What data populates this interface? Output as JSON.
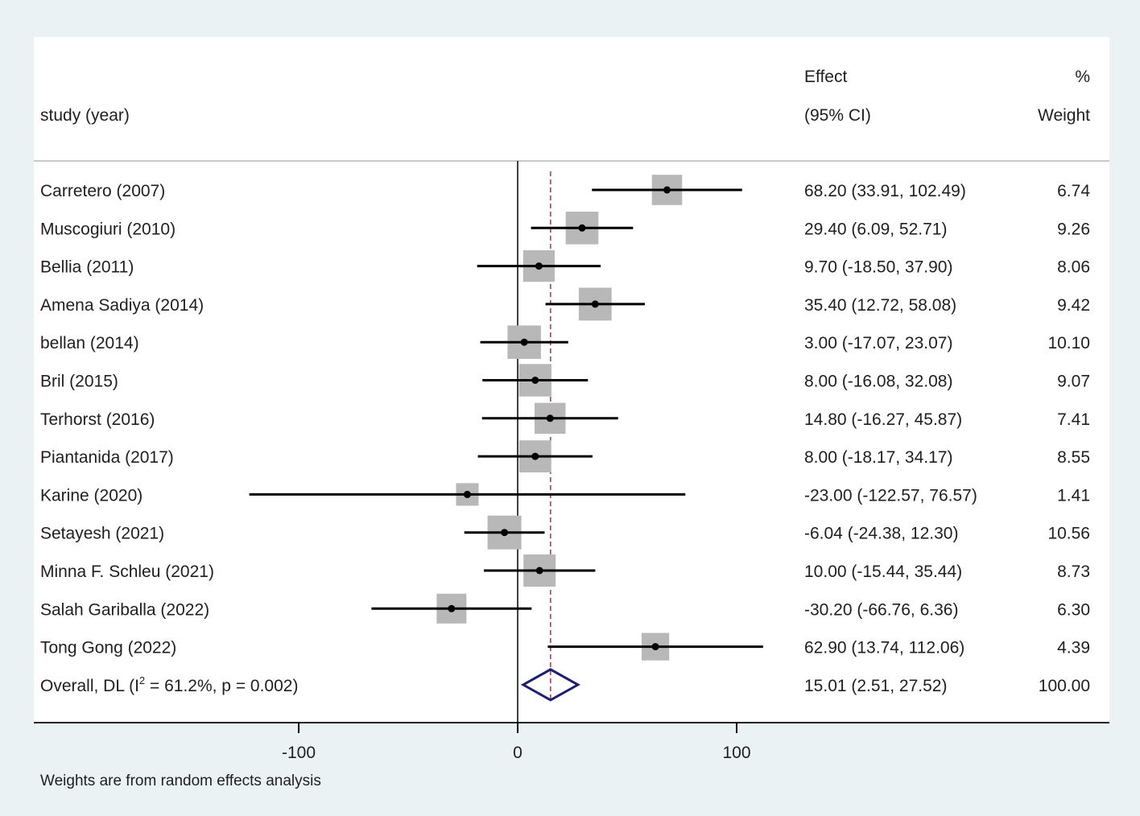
{
  "chart_data": {
    "type": "forest",
    "header": {
      "study": "study (year)",
      "effect_line1": "Effect",
      "effect_line2": "(95% CI)",
      "weight_line1": "%",
      "weight_line2": "Weight"
    },
    "studies": [
      {
        "label": "Carretero (2007)",
        "effect": 68.2,
        "lower": 33.91,
        "upper": 102.49,
        "ci_text": "68.20 (33.91, 102.49)",
        "weight": 6.74,
        "weight_text": "6.74"
      },
      {
        "label": "Muscogiuri (2010)",
        "effect": 29.4,
        "lower": 6.09,
        "upper": 52.71,
        "ci_text": "29.40 (6.09, 52.71)",
        "weight": 9.26,
        "weight_text": "9.26"
      },
      {
        "label": "Bellia (2011)",
        "effect": 9.7,
        "lower": -18.5,
        "upper": 37.9,
        "ci_text": "9.70 (-18.50, 37.90)",
        "weight": 8.06,
        "weight_text": "8.06"
      },
      {
        "label": "Amena Sadiya (2014)",
        "effect": 35.4,
        "lower": 12.72,
        "upper": 58.08,
        "ci_text": "35.40 (12.72, 58.08)",
        "weight": 9.42,
        "weight_text": "9.42"
      },
      {
        "label": "bellan (2014)",
        "effect": 3.0,
        "lower": -17.07,
        "upper": 23.07,
        "ci_text": "3.00 (-17.07, 23.07)",
        "weight": 10.1,
        "weight_text": "10.10"
      },
      {
        "label": "Bril (2015)",
        "effect": 8.0,
        "lower": -16.08,
        "upper": 32.08,
        "ci_text": "8.00 (-16.08, 32.08)",
        "weight": 9.07,
        "weight_text": "9.07"
      },
      {
        "label": "Terhorst (2016)",
        "effect": 14.8,
        "lower": -16.27,
        "upper": 45.87,
        "ci_text": "14.80 (-16.27, 45.87)",
        "weight": 7.41,
        "weight_text": "7.41"
      },
      {
        "label": "Piantanida (2017)",
        "effect": 8.0,
        "lower": -18.17,
        "upper": 34.17,
        "ci_text": "8.00 (-18.17, 34.17)",
        "weight": 8.55,
        "weight_text": "8.55"
      },
      {
        "label": "Karine (2020)",
        "effect": -23.0,
        "lower": -122.57,
        "upper": 76.57,
        "ci_text": "-23.00 (-122.57, 76.57)",
        "weight": 1.41,
        "weight_text": "1.41"
      },
      {
        "label": "Setayesh (2021)",
        "effect": -6.04,
        "lower": -24.38,
        "upper": 12.3,
        "ci_text": "-6.04 (-24.38, 12.30)",
        "weight": 10.56,
        "weight_text": "10.56"
      },
      {
        "label": "Minna F. Schleu (2021)",
        "effect": 10.0,
        "lower": -15.44,
        "upper": 35.44,
        "ci_text": "10.00 (-15.44, 35.44)",
        "weight": 8.73,
        "weight_text": "8.73"
      },
      {
        "label": "Salah Gariballa (2022)",
        "effect": -30.2,
        "lower": -66.76,
        "upper": 6.36,
        "ci_text": "-30.20 (-66.76, 6.36)",
        "weight": 6.3,
        "weight_text": "6.30"
      },
      {
        "label": "Tong Gong (2022)",
        "effect": 62.9,
        "lower": 13.74,
        "upper": 112.06,
        "ci_text": "62.90 (13.74, 112.06)",
        "weight": 4.39,
        "weight_text": "4.39"
      }
    ],
    "overall": {
      "label_prefix": "Overall, DL (I",
      "label_sup": "2",
      "label_suffix": " = 61.2%, p = 0.002)",
      "effect": 15.01,
      "lower": 2.51,
      "upper": 27.52,
      "ci_text": "15.01 (2.51, 27.52)",
      "weight_text": "100.00"
    },
    "xaxis": {
      "ticks": [
        -100,
        0,
        100
      ],
      "tick_labels": [
        "-100",
        "0",
        "100"
      ],
      "range": [
        -135,
        135
      ]
    },
    "footnote": "Weights are from random effects analysis",
    "colors": {
      "background": "#eaf2f3",
      "panel": "#ffffff",
      "box": "#b8b8b8",
      "line": "#000000",
      "overall_diamond": "#1b1f6e",
      "overall_line": "#b3343a"
    }
  }
}
